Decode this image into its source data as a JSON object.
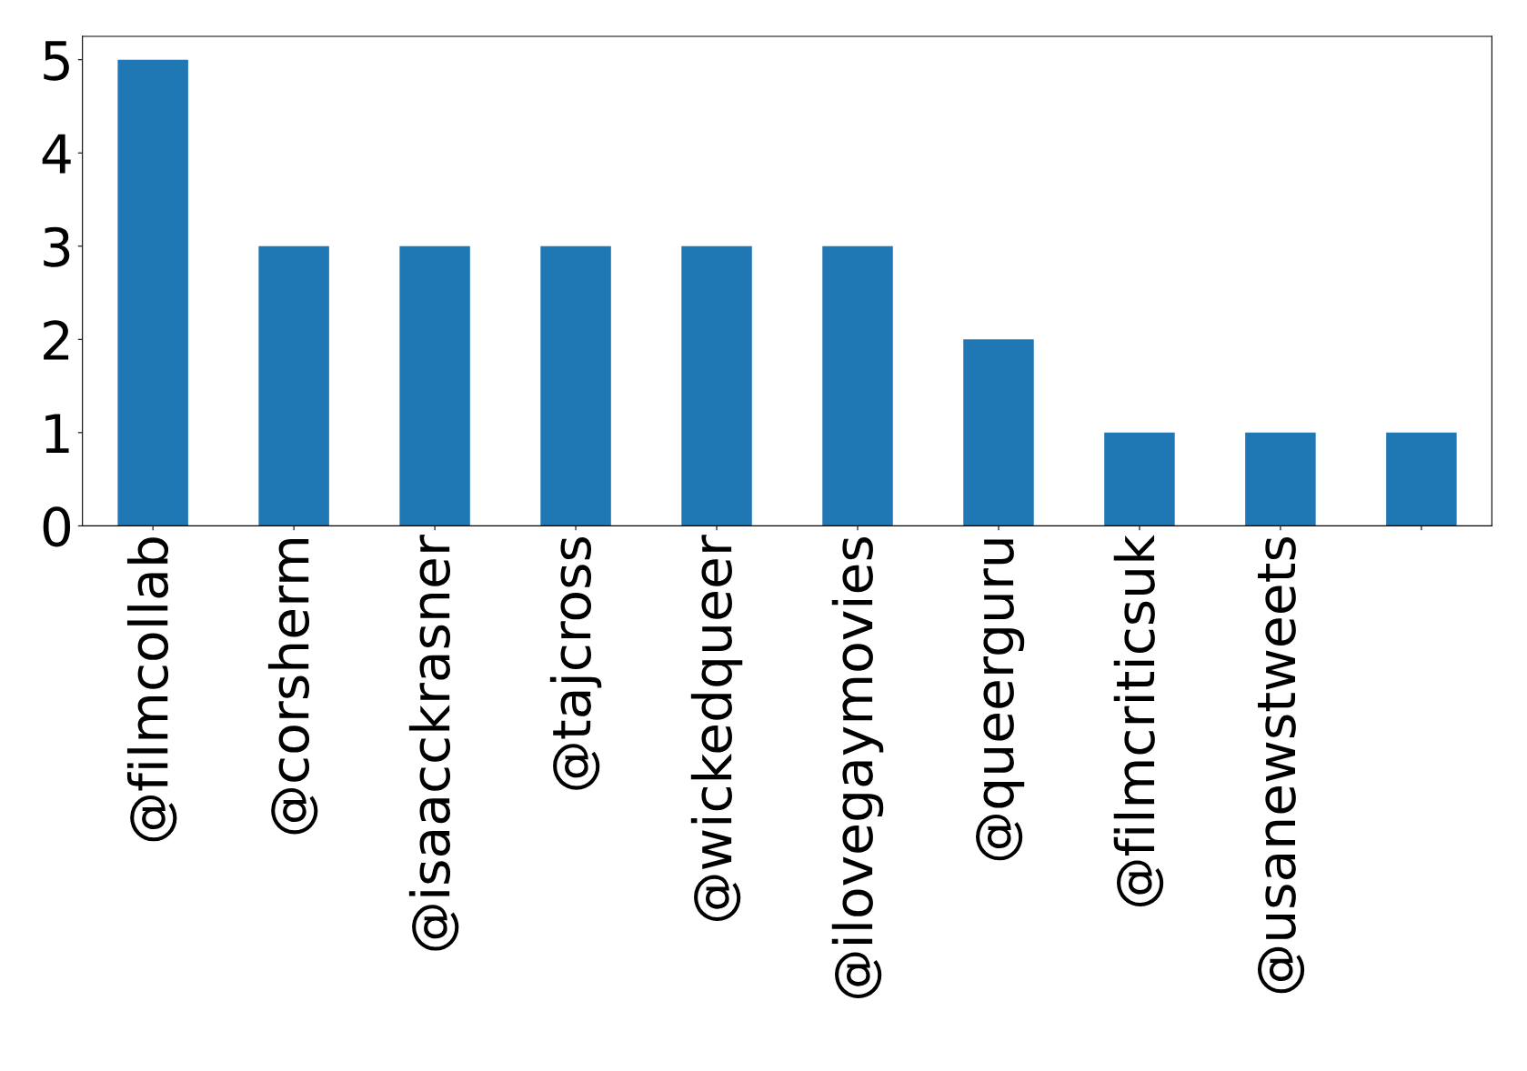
{
  "chart_data": {
    "type": "bar",
    "categories": [
      "@filmcollab",
      "@corsherm",
      "@isaacckrasner",
      "@tajcross",
      "@wickedqueer",
      "@ilovegaymovies",
      "@queerguru",
      "@filmcriticsuk",
      "@usanewstweets",
      null
    ],
    "values": [
      5,
      3,
      3,
      3,
      3,
      3,
      2,
      1,
      1,
      1
    ],
    "color": "#1f77b4",
    "ylim": [
      0,
      5.25
    ],
    "yticks": [
      0,
      1,
      2,
      3,
      4,
      5
    ],
    "grid": false,
    "legend": false
  }
}
